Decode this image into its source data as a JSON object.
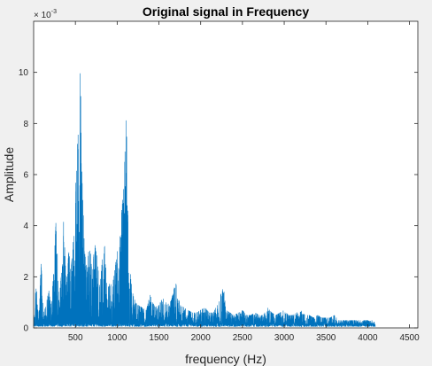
{
  "chart_data": {
    "type": "line",
    "title": "Original signal in Frequency",
    "xlabel": "frequency (Hz)",
    "ylabel": "Amplitude",
    "exponent_base": "× 10",
    "exponent_power": "-3",
    "xlim": [
      0,
      4600
    ],
    "ylim": [
      0,
      12
    ],
    "xticks": [
      500,
      1000,
      1500,
      2000,
      2500,
      3000,
      3500,
      4000,
      4500
    ],
    "yticks": [
      0,
      2,
      4,
      6,
      8,
      10
    ],
    "grid": false,
    "colors": {
      "line": "#0072bd",
      "axes": "#262626",
      "background": "#ffffff",
      "figure": "#f0f0f0"
    },
    "series": [
      {
        "x": [
          0,
          30,
          60,
          90,
          120,
          150,
          180,
          210,
          240,
          270,
          300,
          330,
          360,
          390,
          420,
          450,
          480,
          510,
          530,
          545,
          555,
          565,
          575,
          590,
          610,
          640,
          670,
          700,
          730,
          760,
          790,
          820,
          850,
          880,
          910,
          940,
          970,
          1000,
          1030,
          1060,
          1080,
          1095,
          1105,
          1115,
          1125,
          1140,
          1160,
          1190,
          1220,
          1250,
          1300,
          1350,
          1400,
          1450,
          1500,
          1550,
          1600,
          1650,
          1700,
          1750,
          1800,
          1850,
          1900,
          1950,
          2000,
          2050,
          2100,
          2150,
          2200,
          2250,
          2275,
          2300,
          2350,
          2400,
          2450,
          2500,
          2550,
          2600,
          2650,
          2700,
          2750,
          2800,
          2850,
          2900,
          2950,
          3000,
          3050,
          3100,
          3150,
          3200,
          3250,
          3300,
          3350,
          3400,
          3450,
          3500,
          3550,
          3600,
          3650,
          3700,
          3750,
          3800,
          3850,
          3900,
          3950,
          4000,
          4050,
          4090
        ],
        "y": [
          0.3,
          1.8,
          0.4,
          2.5,
          0.6,
          0.9,
          1.5,
          0.8,
          2.2,
          4.4,
          1.2,
          2.0,
          4.3,
          1.5,
          3.0,
          2.4,
          3.6,
          6.0,
          7.5,
          8.8,
          10.0,
          9.6,
          8.0,
          5.0,
          3.0,
          2.2,
          3.5,
          2.0,
          3.3,
          2.8,
          1.6,
          2.6,
          3.2,
          1.4,
          1.8,
          1.6,
          2.2,
          3.0,
          3.4,
          4.8,
          5.5,
          7.0,
          8.2,
          7.4,
          5.8,
          3.0,
          2.0,
          1.3,
          1.0,
          0.9,
          0.8,
          0.7,
          1.4,
          0.8,
          0.9,
          1.2,
          0.9,
          1.1,
          1.8,
          0.9,
          0.8,
          0.7,
          0.6,
          0.6,
          0.7,
          0.8,
          0.6,
          0.6,
          0.9,
          1.4,
          1.6,
          0.7,
          0.6,
          0.5,
          0.6,
          0.7,
          0.5,
          0.5,
          0.6,
          0.5,
          0.5,
          0.8,
          0.6,
          0.5,
          0.6,
          0.7,
          0.5,
          0.5,
          0.6,
          0.7,
          0.5,
          0.5,
          0.4,
          0.5,
          0.4,
          0.4,
          0.4,
          0.5,
          0.3,
          0.3,
          0.3,
          0.3,
          0.3,
          0.3,
          0.3,
          0.3,
          0.3,
          0.2
        ]
      }
    ]
  }
}
